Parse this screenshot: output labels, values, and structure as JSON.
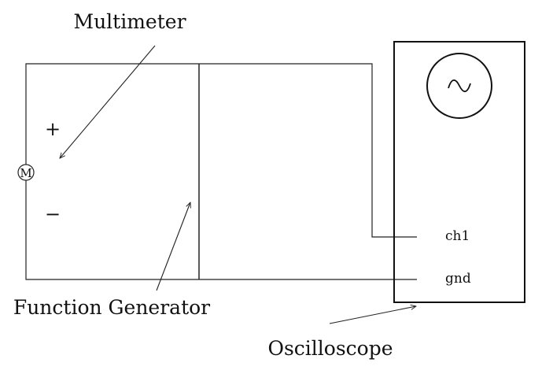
{
  "labels": {
    "multimeter": "Multimeter",
    "function_generator": "Function Generator",
    "oscilloscope": "Oscilloscope",
    "plus": "+",
    "minus": "−",
    "meter_symbol": "M",
    "ch1": "ch1",
    "gnd": "gnd",
    "wave_symbol": "~"
  }
}
